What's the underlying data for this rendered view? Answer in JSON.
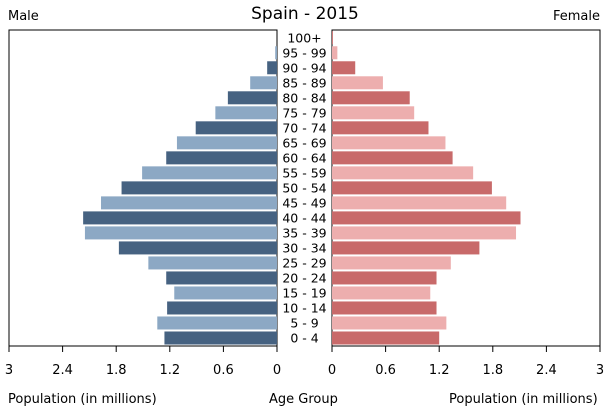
{
  "chart_data": {
    "type": "bar",
    "title": "Spain - 2015",
    "left_label": "Male",
    "right_label": "Female",
    "xlabel_left": "Population (in millions)",
    "xlabel_center": "Age Group",
    "xlabel_right": "Population (in millions)",
    "categories": [
      "0 - 4",
      "5 - 9",
      "10 - 14",
      "15 - 19",
      "20 - 24",
      "25 - 29",
      "30 - 34",
      "35 - 39",
      "40 - 44",
      "45 - 49",
      "50 - 54",
      "55 - 59",
      "60 - 64",
      "65 - 69",
      "70 - 74",
      "75 - 79",
      "80 - 84",
      "85 - 89",
      "90 - 94",
      "95 - 99",
      "100+"
    ],
    "xlim": [
      0,
      3
    ],
    "ticks": [
      3,
      2.4,
      1.8,
      1.2,
      0.6,
      0
    ],
    "tick_labels_left": [
      "3",
      "2.4",
      "1.8",
      "1.2",
      "0.6",
      "0"
    ],
    "tick_labels_right": [
      "0",
      "0.6",
      "1.2",
      "1.8",
      "2.4",
      "3"
    ],
    "series": [
      {
        "name": "Male",
        "values": [
          1.26,
          1.34,
          1.23,
          1.15,
          1.24,
          1.44,
          1.77,
          2.15,
          2.17,
          1.97,
          1.74,
          1.51,
          1.24,
          1.12,
          0.91,
          0.69,
          0.55,
          0.3,
          0.11,
          0.02,
          0.0
        ],
        "colors": [
          "#466281",
          "#8ca8c4"
        ]
      },
      {
        "name": "Female",
        "values": [
          1.2,
          1.28,
          1.17,
          1.1,
          1.17,
          1.33,
          1.65,
          2.06,
          2.11,
          1.95,
          1.79,
          1.58,
          1.35,
          1.27,
          1.08,
          0.92,
          0.87,
          0.57,
          0.26,
          0.06,
          0.01
        ],
        "colors": [
          "#c86a6a",
          "#edaeae"
        ]
      }
    ]
  }
}
